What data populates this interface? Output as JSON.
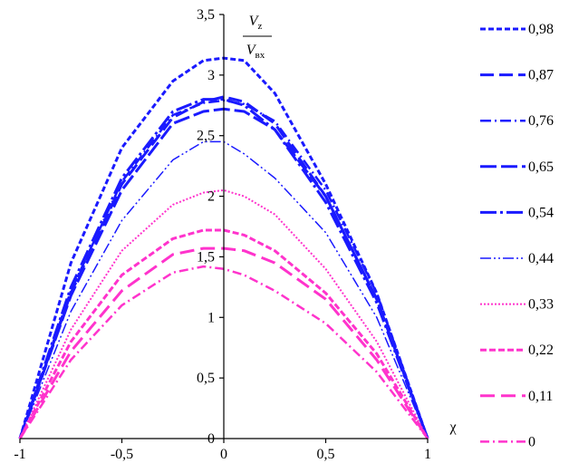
{
  "chart_data": {
    "type": "line",
    "ylabel": {
      "numerator": "V",
      "numerator_sub": "z",
      "denominator": "V",
      "denominator_sub": "вх"
    },
    "xlabel": "χ",
    "xlim": [
      -1,
      1
    ],
    "ylim": [
      0,
      3.5
    ],
    "xticks": [
      -1,
      -0.5,
      0,
      0.5,
      1
    ],
    "xtick_labels": [
      "-1",
      "-0,5",
      "0",
      "0,5",
      "1"
    ],
    "yticks": [
      0.5,
      1,
      1.5,
      2,
      2.5,
      3,
      3.5
    ],
    "ytick_labels": [
      "0,5",
      "1",
      "1,5",
      "2",
      "2,5",
      "3",
      "3,5"
    ],
    "grid": false,
    "legend_position": "right",
    "series": [
      {
        "name": "0,98",
        "color": "#1a1aff",
        "dash": "6,3",
        "width": 3.0,
        "x": [
          -1,
          -0.75,
          -0.5,
          -0.25,
          -0.1,
          0,
          0.1,
          0.25,
          0.5,
          0.75,
          1
        ],
        "y": [
          0,
          1.45,
          2.4,
          2.95,
          3.12,
          3.14,
          3.12,
          2.85,
          2.1,
          1.2,
          0
        ]
      },
      {
        "name": "0,87",
        "color": "#1a1aff",
        "dash": "15,6",
        "width": 3.0,
        "x": [
          -1,
          -0.75,
          -0.5,
          -0.25,
          -0.1,
          0,
          0.1,
          0.25,
          0.5,
          0.75,
          1
        ],
        "y": [
          0,
          1.2,
          2.1,
          2.65,
          2.78,
          2.82,
          2.78,
          2.6,
          2.0,
          1.15,
          0
        ]
      },
      {
        "name": "0,76",
        "color": "#1a1aff",
        "dash": "12,4,2,4",
        "width": 2.5,
        "x": [
          -1,
          -0.75,
          -0.5,
          -0.25,
          -0.1,
          0,
          0.1,
          0.25,
          0.5,
          0.75,
          1
        ],
        "y": [
          0,
          1.22,
          2.12,
          2.67,
          2.77,
          2.79,
          2.76,
          2.62,
          2.05,
          1.2,
          0
        ]
      },
      {
        "name": "0,65",
        "color": "#1a1aff",
        "dash": "18,5",
        "width": 3.0,
        "x": [
          -1,
          -0.75,
          -0.5,
          -0.25,
          -0.1,
          0,
          0.1,
          0.25,
          0.5,
          0.75,
          1
        ],
        "y": [
          0,
          1.18,
          2.05,
          2.6,
          2.7,
          2.72,
          2.7,
          2.55,
          2.0,
          1.15,
          0
        ]
      },
      {
        "name": "0,54",
        "color": "#1a1aff",
        "dash": "18,4,3,4",
        "width": 3.0,
        "x": [
          -1,
          -0.75,
          -0.5,
          -0.25,
          -0.1,
          0,
          0.1,
          0.25,
          0.5,
          0.75,
          1
        ],
        "y": [
          0,
          1.25,
          2.15,
          2.7,
          2.8,
          2.8,
          2.75,
          2.55,
          1.95,
          1.12,
          0
        ]
      },
      {
        "name": "0,44",
        "color": "#1a1aff",
        "dash": "12,3,2,3,2,3",
        "width": 1.5,
        "x": [
          -1,
          -0.75,
          -0.5,
          -0.25,
          -0.1,
          0,
          0.1,
          0.25,
          0.5,
          0.75,
          1
        ],
        "y": [
          0,
          1.05,
          1.8,
          2.3,
          2.45,
          2.45,
          2.35,
          2.15,
          1.7,
          1.0,
          0
        ]
      },
      {
        "name": "0,33",
        "color": "#ff33cc",
        "dash": "2,2",
        "width": 2.0,
        "x": [
          -1,
          -0.75,
          -0.5,
          -0.25,
          -0.1,
          0,
          0.1,
          0.25,
          0.5,
          0.75,
          1
        ],
        "y": [
          0,
          0.9,
          1.55,
          1.93,
          2.03,
          2.05,
          2.0,
          1.85,
          1.4,
          0.8,
          0
        ]
      },
      {
        "name": "0,22",
        "color": "#ff33cc",
        "dash": "7,3",
        "width": 3.0,
        "x": [
          -1,
          -0.75,
          -0.5,
          -0.25,
          -0.1,
          0,
          0.1,
          0.25,
          0.5,
          0.75,
          1
        ],
        "y": [
          0,
          0.8,
          1.35,
          1.65,
          1.72,
          1.72,
          1.68,
          1.55,
          1.2,
          0.7,
          0
        ]
      },
      {
        "name": "0,11",
        "color": "#ff33cc",
        "dash": "16,7",
        "width": 3.0,
        "x": [
          -1,
          -0.75,
          -0.5,
          -0.25,
          -0.1,
          0,
          0.1,
          0.25,
          0.5,
          0.75,
          1
        ],
        "y": [
          0,
          0.72,
          1.22,
          1.52,
          1.57,
          1.57,
          1.55,
          1.45,
          1.15,
          0.65,
          0
        ]
      },
      {
        "name": "0",
        "color": "#ff33cc",
        "dash": "10,4,2,4",
        "width": 2.5,
        "x": [
          -1,
          -0.75,
          -0.5,
          -0.25,
          -0.1,
          0,
          0.1,
          0.25,
          0.5,
          0.75,
          1
        ],
        "y": [
          0,
          0.65,
          1.1,
          1.37,
          1.42,
          1.4,
          1.35,
          1.22,
          0.95,
          0.55,
          0
        ]
      }
    ]
  }
}
